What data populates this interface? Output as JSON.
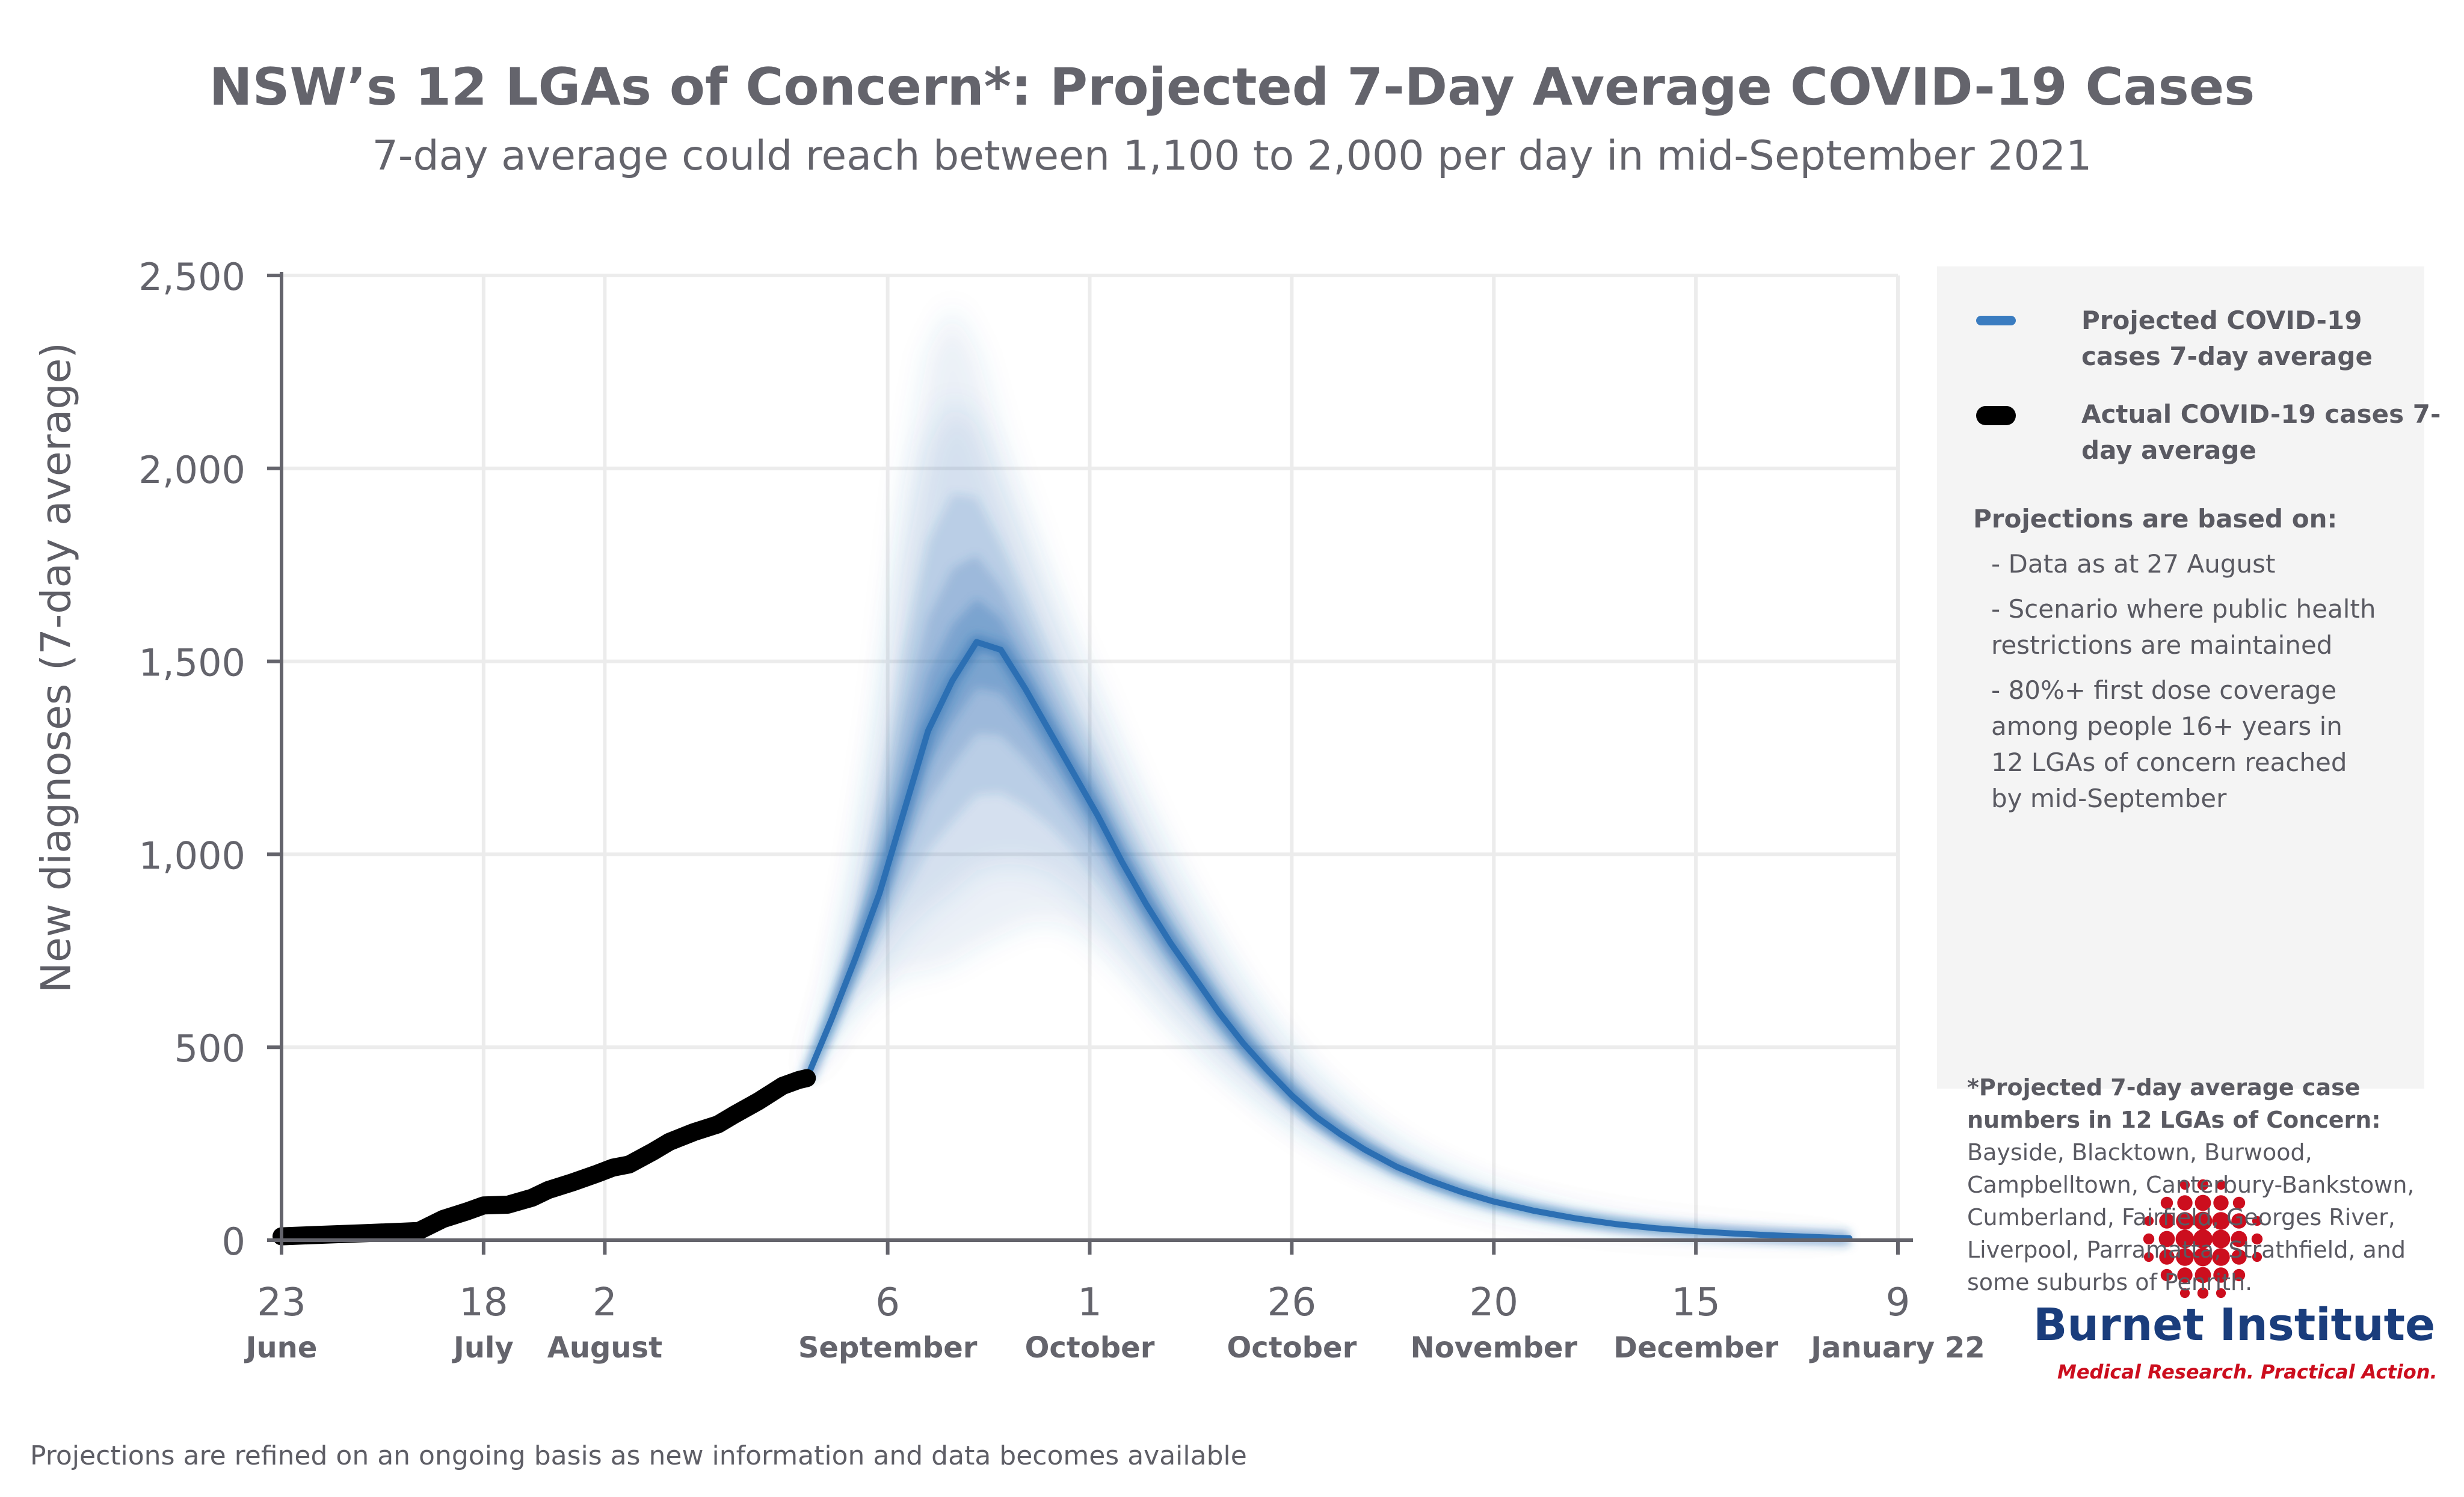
{
  "header": {
    "title": "NSW’s 12 LGAs of Concern*: Projected 7-Day Average COVID-19 Cases",
    "subtitle": "7-day average could reach between 1,100 to 2,000 per day in mid-September 2021"
  },
  "colors": {
    "projected": "#2c6fb3",
    "actual": "#000000",
    "grid": "#ececec",
    "axis": "#64646c",
    "brand_blue": "#1a3d7c",
    "brand_red": "#cc0e1e"
  },
  "legend": {
    "projected_label": "Projected COVID-19 cases 7-day average",
    "actual_label": "Actual COVID-19 cases 7-day average",
    "notes_title": "Projections are based on:",
    "notes": [
      "- Data as at 27 August",
      "- Scenario where public health restrictions are maintained",
      "- 80%+ first dose coverage among people 16+ years in 12 LGAs of concern reached by mid-September"
    ],
    "lga_title": "*Projected 7-day average case numbers in 12 LGAs of Concern:",
    "lga_list": "Bayside, Blacktown, Burwood, Campbelltown, Canterbury-Bankstown, Cumberland, Fairfield, Georges River, Liverpool, Parramatta, Strathfield, and some suburbs of Penrith."
  },
  "footnote": "Projections are refined on an ongoing basis as new information and data becomes available",
  "logo": {
    "name": "Burnet Institute",
    "tagline": "Medical Research. Practical Action."
  },
  "chart_data": {
    "type": "line",
    "title": "NSW’s 12 LGAs of Concern*: Projected 7-Day Average COVID-19 Cases",
    "subtitle": "7-day average could reach between 1,100 to 2,000 per day in mid-September 2021",
    "ylabel": "New diagnoses (7-day average)",
    "xlabel": "",
    "ylim": [
      0,
      2500
    ],
    "xlim": [
      "2021-06-23",
      "2022-01-09"
    ],
    "y_ticks": [
      0,
      500,
      1000,
      1500,
      2000,
      2500
    ],
    "y_tick_labels": [
      "0",
      "500",
      "1,000",
      "1,500",
      "2,000",
      "2,500"
    ],
    "x_ticks": [
      {
        "date": "2021-06-23",
        "day": "23",
        "month": "June"
      },
      {
        "date": "2021-07-18",
        "day": "18",
        "month": "July"
      },
      {
        "date": "2021-08-02",
        "day": "2",
        "month": "August"
      },
      {
        "date": "2021-09-06",
        "day": "6",
        "month": "September"
      },
      {
        "date": "2021-10-01",
        "day": "1",
        "month": "October"
      },
      {
        "date": "2021-10-26",
        "day": "26",
        "month": "October"
      },
      {
        "date": "2021-11-20",
        "day": "20",
        "month": "November"
      },
      {
        "date": "2021-12-15",
        "day": "15",
        "month": "December"
      },
      {
        "date": "2022-01-09",
        "day": "9",
        "month": "January 22"
      }
    ],
    "grid": true,
    "legend_position": "right",
    "series": [
      {
        "name": "Actual COVID-19 cases 7-day average",
        "x": [
          "2021-06-23",
          "2021-06-28",
          "2021-07-03",
          "2021-07-08",
          "2021-07-10",
          "2021-07-13",
          "2021-07-16",
          "2021-07-18",
          "2021-07-21",
          "2021-07-24",
          "2021-07-26",
          "2021-07-29",
          "2021-08-01",
          "2021-08-03",
          "2021-08-05",
          "2021-08-08",
          "2021-08-10",
          "2021-08-13",
          "2021-08-16",
          "2021-08-18",
          "2021-08-21",
          "2021-08-24",
          "2021-08-26",
          "2021-08-27"
        ],
        "y": [
          10,
          14,
          18,
          22,
          24,
          55,
          75,
          90,
          92,
          110,
          130,
          150,
          172,
          188,
          196,
          230,
          255,
          280,
          300,
          325,
          360,
          400,
          415,
          420
        ]
      },
      {
        "name": "Projected COVID-19 cases 7-day average",
        "x": [
          "2021-08-27",
          "2021-08-30",
          "2021-09-02",
          "2021-09-05",
          "2021-09-08",
          "2021-09-11",
          "2021-09-14",
          "2021-09-17",
          "2021-09-20",
          "2021-09-23",
          "2021-09-26",
          "2021-09-29",
          "2021-10-02",
          "2021-10-05",
          "2021-10-08",
          "2021-10-11",
          "2021-10-14",
          "2021-10-17",
          "2021-10-20",
          "2021-10-23",
          "2021-10-26",
          "2021-10-29",
          "2021-11-01",
          "2021-11-04",
          "2021-11-08",
          "2021-11-12",
          "2021-11-16",
          "2021-11-20",
          "2021-11-25",
          "2021-11-30",
          "2021-12-05",
          "2021-12-10",
          "2021-12-15",
          "2021-12-20",
          "2021-12-25",
          "2021-12-30",
          "2022-01-03"
        ],
        "y": [
          420,
          570,
          730,
          900,
          1110,
          1320,
          1450,
          1550,
          1530,
          1430,
          1320,
          1210,
          1100,
          980,
          870,
          770,
          680,
          590,
          510,
          440,
          375,
          320,
          275,
          235,
          190,
          155,
          125,
          100,
          76,
          57,
          42,
          31,
          23,
          17,
          12,
          8,
          5
        ]
      }
    ],
    "uncertainty_band": {
      "x": [
        "2021-08-27",
        "2021-08-30",
        "2021-09-02",
        "2021-09-05",
        "2021-09-08",
        "2021-09-11",
        "2021-09-14",
        "2021-09-17",
        "2021-09-20",
        "2021-09-23",
        "2021-09-26",
        "2021-09-29",
        "2021-10-02",
        "2021-10-05",
        "2021-10-08",
        "2021-10-11",
        "2021-10-14",
        "2021-10-17",
        "2021-10-20",
        "2021-10-23",
        "2021-10-26",
        "2021-10-29",
        "2021-11-01",
        "2021-11-04",
        "2021-11-08",
        "2021-11-12",
        "2021-11-16",
        "2021-11-20",
        "2021-11-25",
        "2021-11-30",
        "2021-12-05",
        "2021-12-10",
        "2021-12-15",
        "2021-12-20",
        "2021-12-25",
        "2021-12-30",
        "2022-01-03"
      ],
      "lower": [
        420,
        520,
        600,
        650,
        690,
        700,
        720,
        760,
        790,
        820,
        830,
        810,
        760,
        700,
        630,
        560,
        500,
        440,
        390,
        340,
        295,
        255,
        220,
        190,
        155,
        125,
        100,
        80,
        60,
        45,
        33,
        24,
        17,
        12,
        8,
        5,
        3
      ],
      "upper": [
        420,
        650,
        980,
        1400,
        1950,
        2300,
        2420,
        2300,
        2080,
        1900,
        1720,
        1560,
        1420,
        1270,
        1130,
        1000,
        880,
        770,
        670,
        580,
        500,
        430,
        370,
        315,
        255,
        205,
        165,
        130,
        98,
        73,
        54,
        40,
        30,
        22,
        16,
        11,
        7
      ]
    }
  }
}
